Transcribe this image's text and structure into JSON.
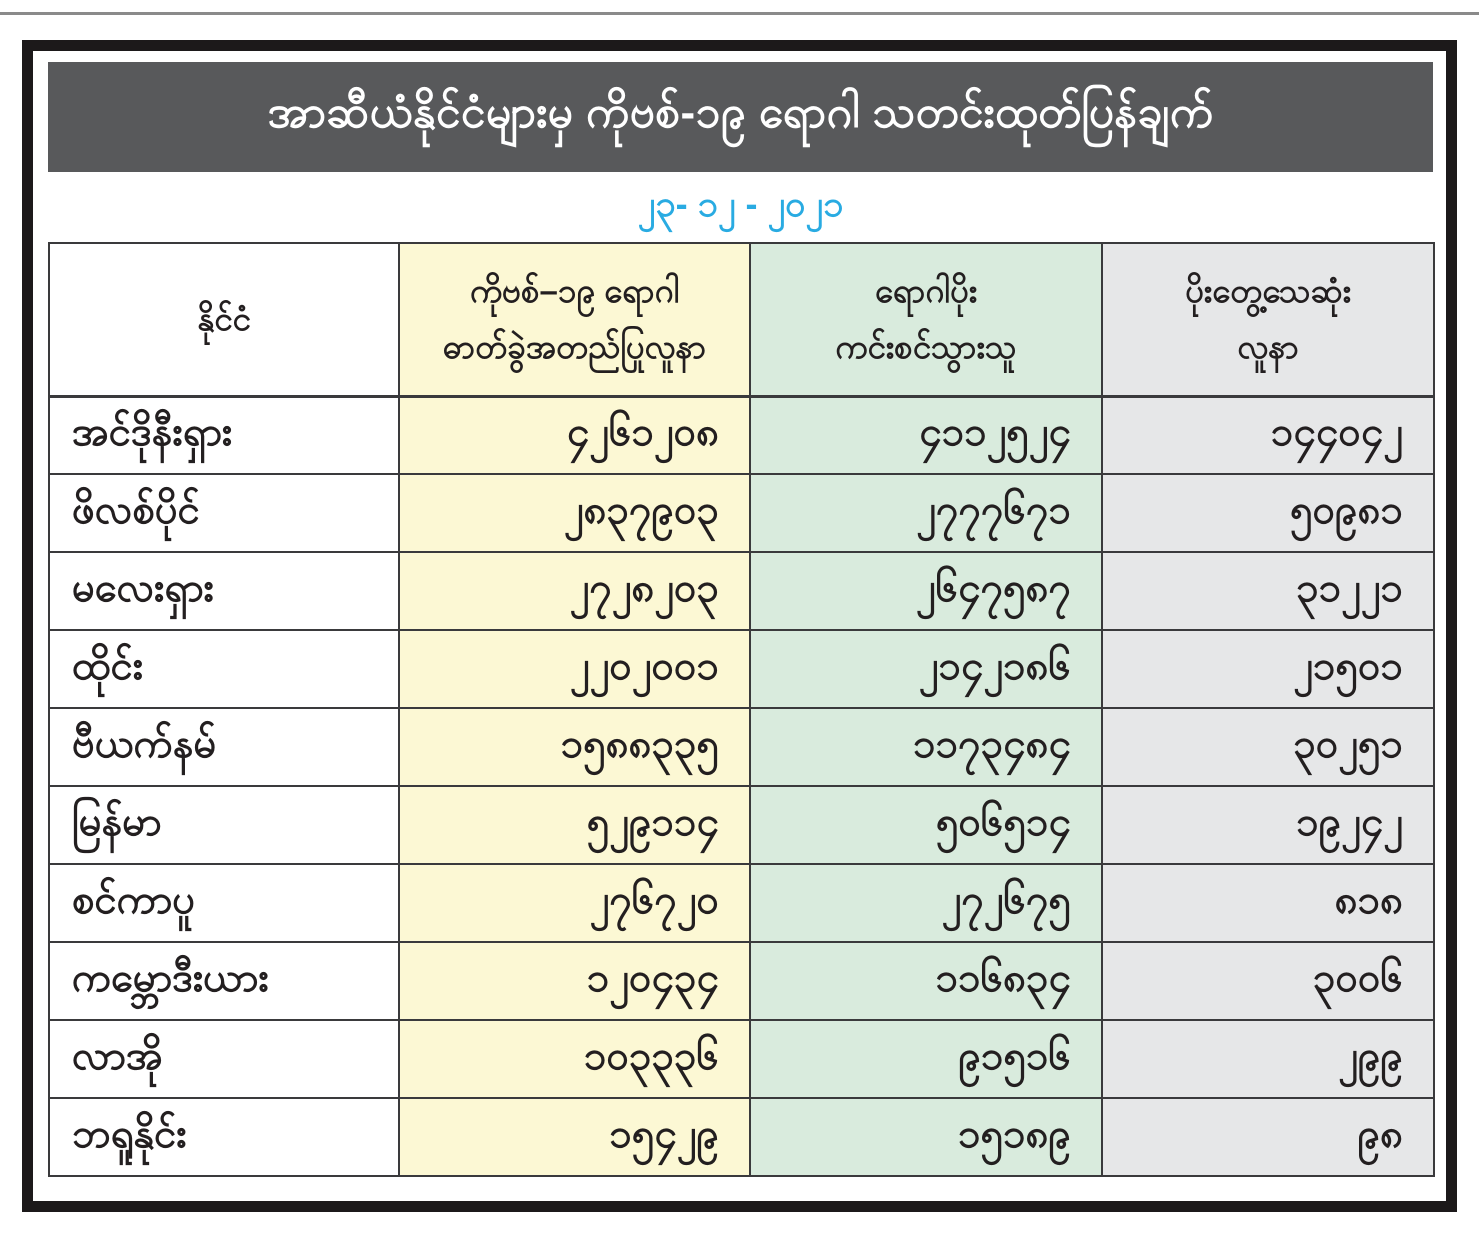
{
  "title": "အာဆီယံနိုင်ငံများမှ ကိုဗစ်-၁၉ ရောဂါ သတင်းထုတ်ပြန်ချက်",
  "date": "၂၃- ၁၂ - ၂၀၂၁",
  "colors": {
    "banner_bg": "#58595b",
    "banner_text": "#ffffff",
    "date_text": "#29abe2",
    "confirmed_col_bg": "#fcf8d4",
    "recovered_col_bg": "#d9ebdd",
    "deaths_col_bg": "#e6e7e8",
    "grid_border": "#3a3a3c",
    "outer_frame": "#1c191a"
  },
  "table": {
    "headers": {
      "country": "နိုင်ငံ",
      "confirmed": "ကိုဗစ်–၁၉ ရောဂါ\nဓာတ်ခွဲအတည်ပြုလူနာ",
      "recovered": "ရောဂါပိုး\nကင်းစင်သွားသူ",
      "deaths": "ပိုးတွေ့သေဆုံး\nလူနာ"
    },
    "rows": [
      {
        "country": "အင်ဒိုနီးရှား",
        "confirmed": "၄၂၆၁၂၀၈",
        "recovered": "၄၁၁၂၅၂၄",
        "deaths": "၁၄၄၀၄၂"
      },
      {
        "country": "ဖိလစ်ပိုင်",
        "confirmed": "၂၈၃၇၉၀၃",
        "recovered": "၂၇၇၇၆၇၁",
        "deaths": "၅၀၉၈၁"
      },
      {
        "country": "မလေးရှား",
        "confirmed": "၂၇၂၈၂၀၃",
        "recovered": "၂၆၄၇၅၈၇",
        "deaths": "၃၁၂၂၁"
      },
      {
        "country": "ထိုင်း",
        "confirmed": "၂၂၀၂၀၀၁",
        "recovered": "၂၁၄၂၁၈၆",
        "deaths": "၂၁၅၀၁"
      },
      {
        "country": "ဗီယက်နမ်",
        "confirmed": "၁၅၈၈၃၃၅",
        "recovered": "၁၁၇၃၄၈၄",
        "deaths": "၃၀၂၅၁"
      },
      {
        "country": "မြန်မာ",
        "confirmed": "၅၂၉၁၁၄",
        "recovered": "၅၀၆၅၁၄",
        "deaths": "၁၉၂၄၂"
      },
      {
        "country": "စင်ကာပူ",
        "confirmed": "၂၇၆၇၂၀",
        "recovered": "၂၇၂၆၇၅",
        "deaths": "၈၁၈"
      },
      {
        "country": "ကမ္ဘောဒီးယား",
        "confirmed": "၁၂၀၄၃၄",
        "recovered": "၁၁၆၈၃၄",
        "deaths": "၃၀၀၆"
      },
      {
        "country": "လာအို",
        "confirmed": "၁၀၃၃၃၆",
        "recovered": "၉၁၅၁၆",
        "deaths": "၂၉၉"
      },
      {
        "country": "ဘရူနိုင်း",
        "confirmed": "၁၅၄၂၉",
        "recovered": "၁၅၁၈၉",
        "deaths": "၉၈"
      }
    ]
  }
}
